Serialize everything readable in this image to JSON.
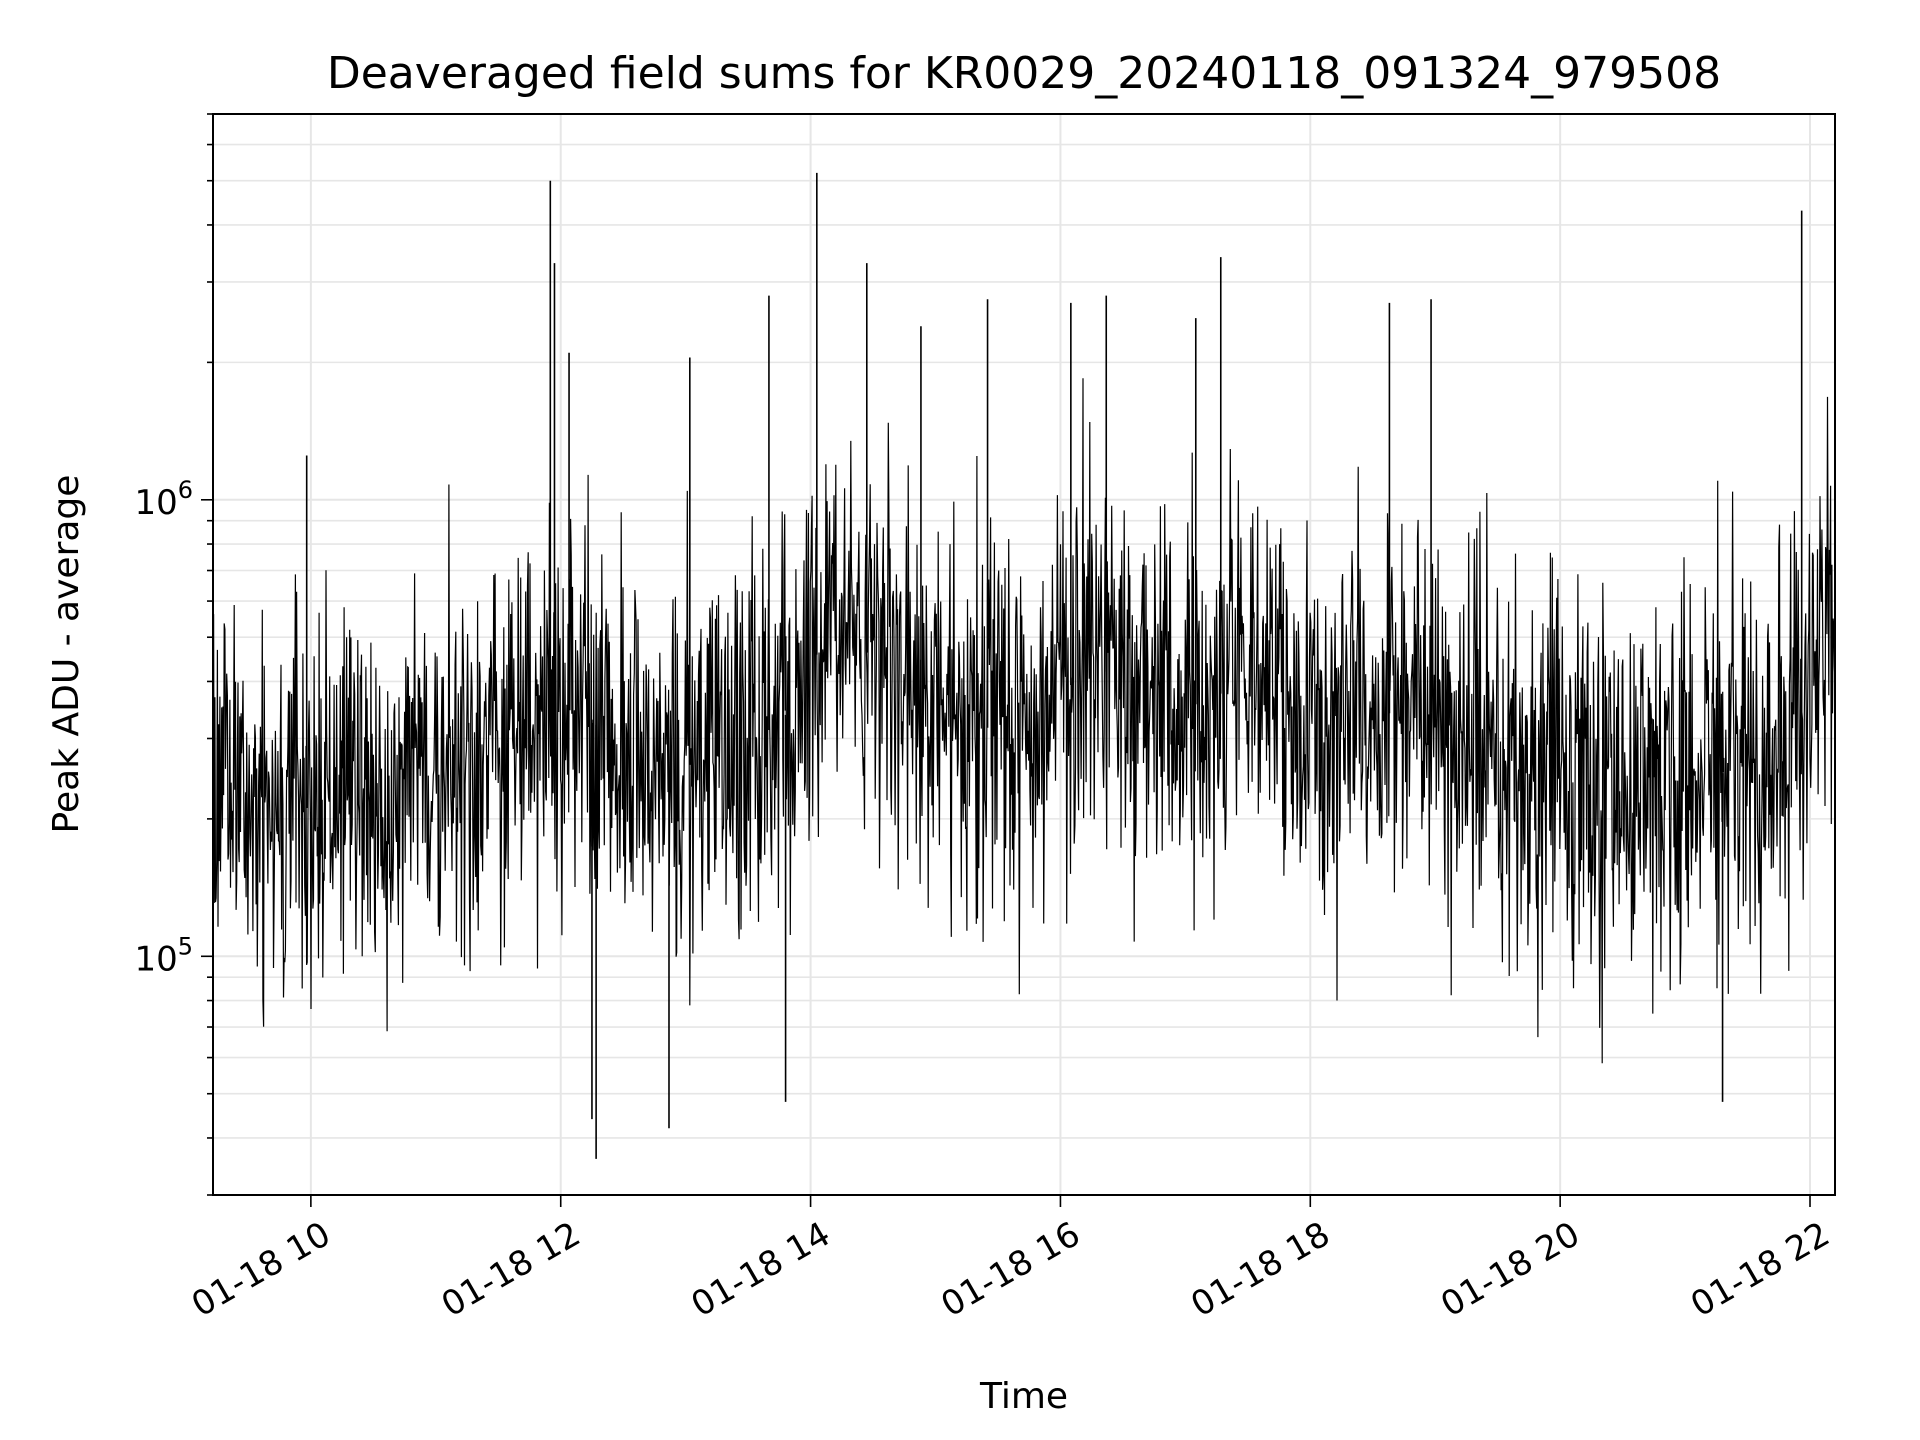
{
  "chart_data": {
    "type": "line",
    "title": "Deaveraged field sums for KR0029_20240118_091324_979508",
    "xlabel": "Time",
    "ylabel": "Peak ADU - average",
    "yscale": "log",
    "ylim": [
      30000,
      7000000
    ],
    "xlim": [
      "01-18 09:13",
      "01-18 22:12"
    ],
    "x_ticks": [
      "01-18 10",
      "01-18 12",
      "01-18 14",
      "01-18 16",
      "01-18 18",
      "01-18 20",
      "01-18 22"
    ],
    "y_ticks": [
      {
        "base": "10",
        "exp": "5",
        "value": 100000
      },
      {
        "base": "10",
        "exp": "6",
        "value": 1000000
      }
    ],
    "grid": true,
    "line_color": "#000000",
    "series": [
      {
        "x": [
          "01-18 09:13",
          "01-18 09:30",
          "01-18 09:45",
          "01-18 10:00",
          "01-18 10:15",
          "01-18 10:30",
          "01-18 10:45",
          "01-18 11:00",
          "01-18 11:15",
          "01-18 11:30",
          "01-18 11:45",
          "01-18 11:55",
          "01-18 12:05",
          "01-18 12:15",
          "01-18 12:30",
          "01-18 12:45",
          "01-18 13:00",
          "01-18 13:15",
          "01-18 13:30",
          "01-18 13:45",
          "01-18 14:00",
          "01-18 14:10",
          "01-18 14:20",
          "01-18 14:30",
          "01-18 14:45",
          "01-18 15:00",
          "01-18 15:15",
          "01-18 15:30",
          "01-18 15:45",
          "01-18 16:00",
          "01-18 16:15",
          "01-18 16:30",
          "01-18 16:45",
          "01-18 17:00",
          "01-18 17:15",
          "01-18 17:30",
          "01-18 17:45",
          "01-18 18:00",
          "01-18 18:15",
          "01-18 18:30",
          "01-18 18:45",
          "01-18 19:00",
          "01-18 19:15",
          "01-18 19:30",
          "01-18 19:45",
          "01-18 20:00",
          "01-18 20:15",
          "01-18 20:30",
          "01-18 20:45",
          "01-18 21:00",
          "01-18 21:15",
          "01-18 21:30",
          "01-18 21:45",
          "01-18 21:55",
          "01-18 22:05",
          "01-18 22:12"
        ],
        "y": [
          250000,
          240000,
          220000,
          210000,
          230000,
          240000,
          250000,
          260000,
          280000,
          300000,
          320000,
          360000,
          380000,
          330000,
          270000,
          250000,
          260000,
          280000,
          300000,
          320000,
          420000,
          560000,
          520000,
          440000,
          360000,
          330000,
          310000,
          320000,
          340000,
          380000,
          420000,
          420000,
          380000,
          350000,
          370000,
          420000,
          380000,
          320000,
          300000,
          320000,
          360000,
          340000,
          290000,
          270000,
          260000,
          250000,
          240000,
          240000,
          250000,
          250000,
          250000,
          260000,
          250000,
          300000,
          480000,
          500000
        ],
        "spikes": [
          {
            "x": "01-18 09:58",
            "y": 1250000
          },
          {
            "x": "01-18 11:55",
            "y": 5000000
          },
          {
            "x": "01-18 11:57",
            "y": 3300000
          },
          {
            "x": "01-18 12:04",
            "y": 2100000
          },
          {
            "x": "01-18 12:15",
            "y": 44000
          },
          {
            "x": "01-18 12:17",
            "y": 36000
          },
          {
            "x": "01-18 12:52",
            "y": 42000
          },
          {
            "x": "01-18 13:02",
            "y": 2050000
          },
          {
            "x": "01-18 13:40",
            "y": 2800000
          },
          {
            "x": "01-18 13:48",
            "y": 48000
          },
          {
            "x": "01-18 14:03",
            "y": 5200000
          },
          {
            "x": "01-18 14:27",
            "y": 3300000
          },
          {
            "x": "01-18 14:53",
            "y": 2400000
          },
          {
            "x": "01-18 15:25",
            "y": 2750000
          },
          {
            "x": "01-18 16:05",
            "y": 2700000
          },
          {
            "x": "01-18 16:22",
            "y": 2800000
          },
          {
            "x": "01-18 17:05",
            "y": 2500000
          },
          {
            "x": "01-18 17:17",
            "y": 3400000
          },
          {
            "x": "01-18 18:38",
            "y": 2700000
          },
          {
            "x": "01-18 18:58",
            "y": 2750000
          },
          {
            "x": "01-18 21:18",
            "y": 48000
          },
          {
            "x": "01-18 21:56",
            "y": 4300000
          }
        ]
      }
    ]
  }
}
